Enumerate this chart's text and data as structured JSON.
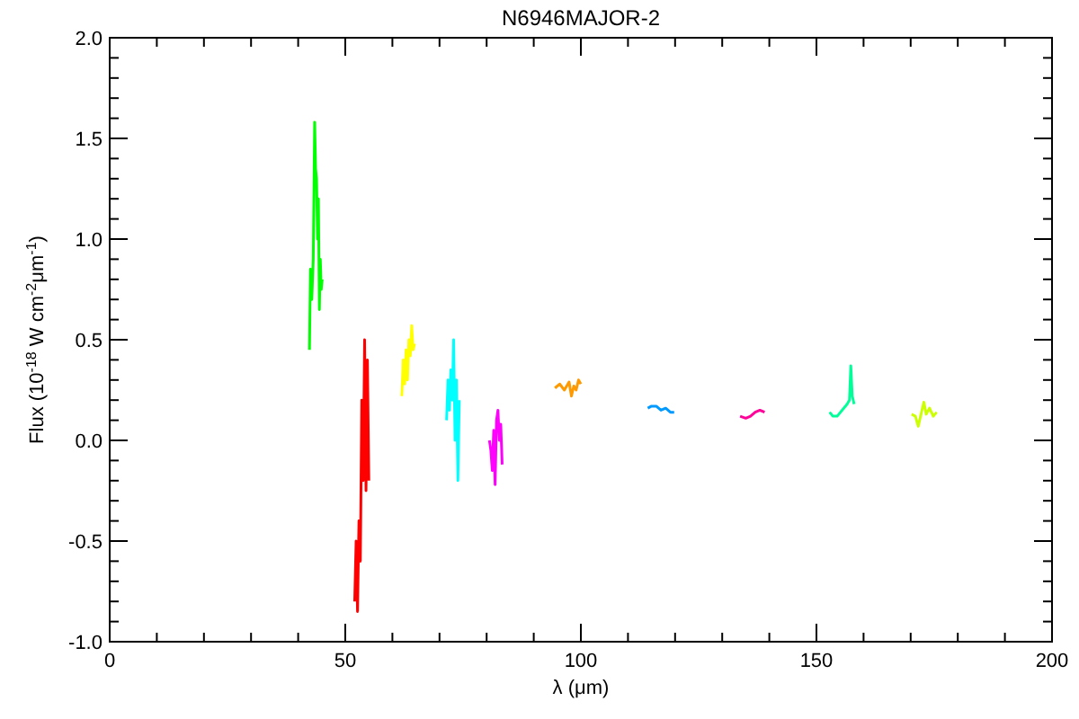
{
  "chart_data": {
    "type": "line",
    "title": "N6946MAJOR-2",
    "xlabel": "λ (μm)",
    "ylabel": "Flux (10$^{-18}$ W cm$^{-2}$μm$^{-1}$)",
    "xlim": [
      0,
      200
    ],
    "ylim": [
      -1,
      2
    ],
    "xticks": [
      0,
      {
        "value": 10,
        "label": null
      },
      {
        "value": 20,
        "label": null
      },
      {
        "value": 30,
        "label": null
      },
      {
        "value": 40,
        "label": null
      },
      50,
      {
        "value": 60,
        "label": null
      },
      {
        "value": 70,
        "label": null
      },
      {
        "value": 80,
        "label": null
      },
      {
        "value": 90,
        "label": null
      },
      100,
      {
        "value": 110,
        "label": null
      },
      {
        "value": 120,
        "label": null
      },
      {
        "value": 130,
        "label": null
      },
      {
        "value": 140,
        "label": null
      },
      150,
      {
        "value": 160,
        "label": null
      },
      {
        "value": 170,
        "label": null
      },
      {
        "value": 180,
        "label": null
      },
      {
        "value": 190,
        "label": null
      },
      200
    ],
    "yticks": [
      {
        "value": -1,
        "label": "-1.0"
      },
      {
        "value": -0.9,
        "label": null
      },
      {
        "value": -0.8,
        "label": null
      },
      {
        "value": -0.7,
        "label": null
      },
      {
        "value": -0.6,
        "label": null
      },
      {
        "value": -0.5,
        "label": "-0.5"
      },
      {
        "value": -0.4,
        "label": null
      },
      {
        "value": -0.3,
        "label": null
      },
      {
        "value": -0.2,
        "label": null
      },
      {
        "value": -0.1,
        "label": null
      },
      {
        "value": 0,
        "label": "0.0"
      },
      {
        "value": 0.1,
        "label": null
      },
      {
        "value": 0.2,
        "label": null
      },
      {
        "value": 0.3,
        "label": null
      },
      {
        "value": 0.4,
        "label": null
      },
      {
        "value": 0.5,
        "label": "0.5"
      },
      {
        "value": 0.6,
        "label": null
      },
      {
        "value": 0.7,
        "label": null
      },
      {
        "value": 0.8,
        "label": null
      },
      {
        "value": 0.9,
        "label": null
      },
      {
        "value": 1,
        "label": "1.0"
      },
      {
        "value": 1.1,
        "label": null
      },
      {
        "value": 1.2,
        "label": null
      },
      {
        "value": 1.3,
        "label": null
      },
      {
        "value": 1.4,
        "label": null
      },
      {
        "value": 1.5,
        "label": "1.5"
      },
      {
        "value": 1.6,
        "label": null
      },
      {
        "value": 1.7,
        "label": null
      },
      {
        "value": 1.8,
        "label": null
      },
      {
        "value": 1.9,
        "label": null
      },
      {
        "value": 2,
        "label": "2.0"
      }
    ],
    "grid": false,
    "series": [
      {
        "color": "#00ff00",
        "x": [
          42.4,
          42.6,
          42.9,
          43.2,
          43.5,
          43.7,
          43.9,
          44.1,
          44.3,
          44.5,
          44.7,
          44.9,
          45.1
        ],
        "values": [
          0.45,
          0.85,
          0.7,
          0.9,
          1.58,
          1.35,
          1.3,
          1.0,
          1.2,
          0.65,
          0.9,
          0.75,
          0.8
        ]
      },
      {
        "color": "#ff0000",
        "x": [
          52.0,
          52.3,
          52.6,
          52.9,
          53.2,
          53.5,
          53.8,
          54.1,
          54.4,
          54.7,
          55.0
        ],
        "values": [
          -0.8,
          -0.5,
          -0.85,
          -0.4,
          -0.6,
          0.2,
          -0.2,
          0.5,
          -0.25,
          0.4,
          -0.2
        ]
      },
      {
        "color": "#ffff00",
        "x": [
          62.0,
          62.3,
          62.6,
          62.9,
          63.2,
          63.5,
          63.8,
          64.1,
          64.4,
          64.7
        ],
        "values": [
          0.22,
          0.4,
          0.28,
          0.45,
          0.3,
          0.5,
          0.42,
          0.57,
          0.45,
          0.48
        ]
      },
      {
        "color": "#00ffff",
        "x": [
          71.5,
          71.8,
          72.1,
          72.4,
          72.7,
          73.0,
          73.3,
          73.6,
          73.9,
          74.2
        ],
        "values": [
          0.1,
          0.3,
          0.15,
          0.35,
          0.2,
          0.5,
          0.0,
          0.3,
          -0.2,
          0.2
        ]
      },
      {
        "color": "#ff00ff",
        "x": [
          80.6,
          80.9,
          81.2,
          81.5,
          81.8,
          82.1,
          82.4,
          82.7,
          83.0,
          83.3
        ],
        "values": [
          0.0,
          -0.05,
          -0.15,
          0.05,
          -0.22,
          0.1,
          0.15,
          0.0,
          0.08,
          -0.12
        ]
      },
      {
        "color": "#ff9900",
        "x": [
          94.5,
          95.5,
          96.5,
          97.5,
          98.0,
          98.5,
          99.0,
          99.5,
          100.0
        ],
        "values": [
          0.26,
          0.28,
          0.25,
          0.29,
          0.22,
          0.27,
          0.25,
          0.3,
          0.28
        ]
      },
      {
        "color": "#0099ff",
        "x": [
          114.2,
          115,
          116,
          117,
          118,
          119,
          119.8
        ],
        "values": [
          0.16,
          0.17,
          0.17,
          0.15,
          0.16,
          0.14,
          0.14
        ]
      },
      {
        "color": "#ff0099",
        "x": [
          133.8,
          135,
          136,
          137,
          138,
          139
        ],
        "values": [
          0.12,
          0.11,
          0.12,
          0.14,
          0.15,
          0.14
        ]
      },
      {
        "color": "#00ff99",
        "x": [
          152.8,
          153.5,
          154.4,
          156.5,
          157.0,
          157.3,
          157.6,
          158.0
        ],
        "values": [
          0.14,
          0.12,
          0.12,
          0.18,
          0.2,
          0.37,
          0.22,
          0.18
        ]
      },
      {
        "color": "#ccff00",
        "x": [
          170.2,
          171,
          171.6,
          172.3,
          172.8,
          173.3,
          174,
          174.8,
          175.5
        ],
        "values": [
          0.13,
          0.12,
          0.07,
          0.14,
          0.19,
          0.13,
          0.16,
          0.12,
          0.14
        ]
      }
    ]
  }
}
